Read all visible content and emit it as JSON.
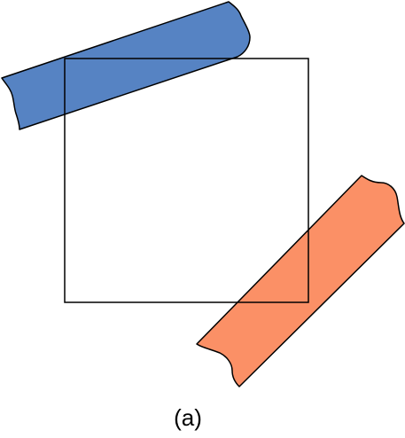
{
  "caption": "(a)",
  "colors": {
    "blue_tape": "#5683C3",
    "orange_tape": "#FB9066",
    "outline": "#000000",
    "background": "#FFFFFF"
  }
}
